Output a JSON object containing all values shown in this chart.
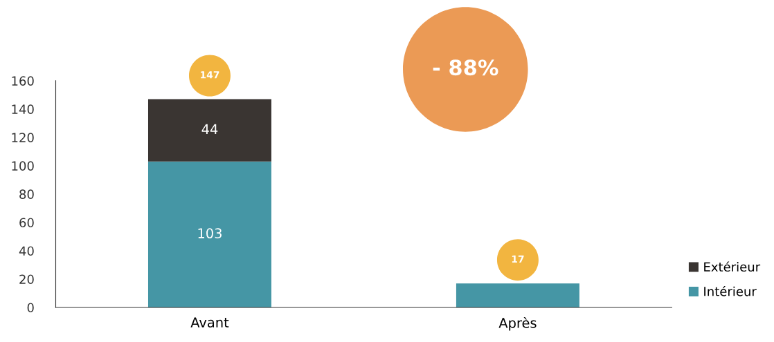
{
  "chart_data": {
    "type": "bar",
    "stacked": true,
    "categories": [
      "Avant",
      "Après"
    ],
    "series": [
      {
        "name": "Intérieur",
        "color": "#4596a5",
        "values": [
          103,
          17
        ],
        "value_labels": [
          "103",
          null
        ]
      },
      {
        "name": "Extérieur",
        "color": "#3a3532",
        "values": [
          44,
          null
        ],
        "value_labels": [
          "44",
          null
        ]
      }
    ],
    "totals": [
      "147",
      "17"
    ],
    "annotations": [
      "- 88%"
    ],
    "ylim": [
      0,
      160
    ],
    "yticks": [
      0,
      20,
      40,
      60,
      80,
      100,
      120,
      140,
      160
    ],
    "grid": false,
    "legend": "right"
  }
}
